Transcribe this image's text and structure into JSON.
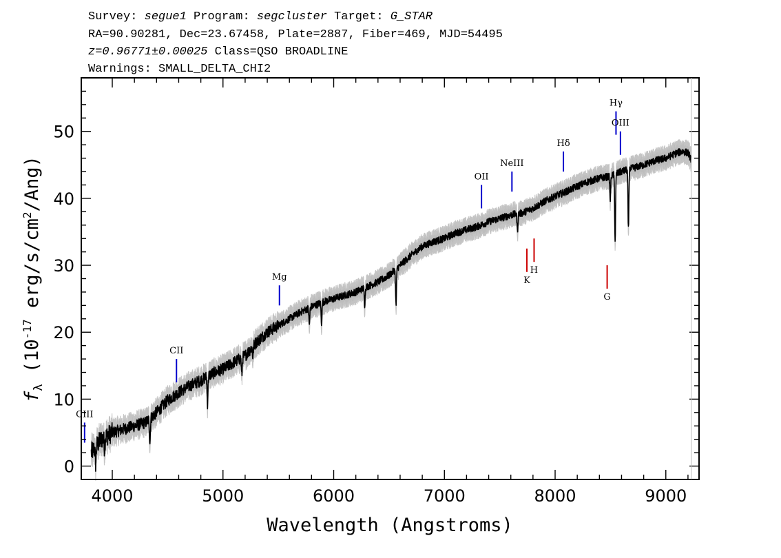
{
  "header": {
    "line1": [
      {
        "t": "Survey: ",
        "em": false
      },
      {
        "t": "segue1",
        "em": true
      },
      {
        "t": " Program: ",
        "em": false
      },
      {
        "t": "segcluster",
        "em": true
      },
      {
        "t": " Target: ",
        "em": false
      },
      {
        "t": "G_STAR",
        "em": true
      }
    ],
    "line2": "RA=90.90281, Dec=23.67458, Plate=2887, Fiber=469, MJD=54495",
    "line3": [
      {
        "t": "z=0.96771±0.00025",
        "em": true
      },
      {
        "t": " Class=QSO BROADLINE",
        "em": false
      }
    ],
    "line4": "Warnings: SMALL_DELTA_CHI2"
  },
  "chart_data": {
    "type": "line",
    "xlabel": "Wavelength (Angstroms)",
    "ylabel": "f_λ (10^-17 erg/s/cm^2/Ang)",
    "ylabel_parts": {
      "f": "f",
      "sub": "λ",
      "a": " (10",
      "sup1": "-17",
      "b": " erg/s/cm",
      "sup2": "2",
      "c": "/Ang)"
    },
    "xlim": [
      3720,
      9300
    ],
    "ylim": [
      -2,
      58
    ],
    "xticks": [
      4000,
      5000,
      6000,
      7000,
      8000,
      9000
    ],
    "xtick_labels": [
      "4000",
      "5000",
      "6000",
      "7000",
      "8000",
      "9000"
    ],
    "yticks": [
      0,
      10,
      20,
      30,
      40,
      50
    ],
    "ytick_labels": [
      "0",
      "10",
      "20",
      "30",
      "40",
      "50"
    ],
    "colors": {
      "flux": "#000000",
      "error_band": "#bdbdbd",
      "emission": "#0000cc",
      "absorption": "#cc0000"
    },
    "continuum": [
      [
        3810,
        2.0
      ],
      [
        3900,
        4.0
      ],
      [
        4000,
        5.0
      ],
      [
        4100,
        5.5
      ],
      [
        4200,
        6.0
      ],
      [
        4300,
        6.5
      ],
      [
        4400,
        8.0
      ],
      [
        4500,
        9.8
      ],
      [
        4600,
        11.0
      ],
      [
        4700,
        12.0
      ],
      [
        4800,
        12.8
      ],
      [
        4900,
        13.8
      ],
      [
        5000,
        14.5
      ],
      [
        5100,
        15.5
      ],
      [
        5200,
        16.5
      ],
      [
        5300,
        18.5
      ],
      [
        5400,
        20.0
      ],
      [
        5500,
        21.0
      ],
      [
        5600,
        22.0
      ],
      [
        5700,
        23.0
      ],
      [
        5800,
        23.8
      ],
      [
        5900,
        24.5
      ],
      [
        6000,
        25.0
      ],
      [
        6100,
        25.5
      ],
      [
        6200,
        26.0
      ],
      [
        6300,
        26.8
      ],
      [
        6400,
        27.5
      ],
      [
        6500,
        28.5
      ],
      [
        6600,
        30.0
      ],
      [
        6700,
        31.5
      ],
      [
        6800,
        32.8
      ],
      [
        6900,
        33.5
      ],
      [
        7000,
        34.0
      ],
      [
        7100,
        34.8
      ],
      [
        7200,
        35.3
      ],
      [
        7300,
        35.8
      ],
      [
        7400,
        36.5
      ],
      [
        7500,
        37.0
      ],
      [
        7600,
        37.5
      ],
      [
        7700,
        37.8
      ],
      [
        7800,
        38.5
      ],
      [
        7900,
        39.5
      ],
      [
        8000,
        40.3
      ],
      [
        8100,
        41.0
      ],
      [
        8200,
        41.8
      ],
      [
        8300,
        42.5
      ],
      [
        8400,
        43.0
      ],
      [
        8500,
        43.3
      ],
      [
        8600,
        44.0
      ],
      [
        8700,
        44.5
      ],
      [
        8800,
        45.0
      ],
      [
        8900,
        45.6
      ],
      [
        9000,
        46.0
      ],
      [
        9100,
        46.8
      ],
      [
        9150,
        47.0
      ],
      [
        9200,
        46.8
      ],
      [
        9230,
        45.8
      ]
    ],
    "absorption_features": [
      [
        3850,
        2.5
      ],
      [
        3930,
        1.5
      ],
      [
        4340,
        3.5
      ],
      [
        4860,
        4.0
      ],
      [
        5170,
        2.5
      ],
      [
        5270,
        1.5
      ],
      [
        5780,
        2.5
      ],
      [
        5890,
        3.0
      ],
      [
        6280,
        2.5
      ],
      [
        6563,
        5.5
      ],
      [
        7660,
        2.5
      ],
      [
        8498,
        3.5
      ],
      [
        8542,
        10.0
      ],
      [
        8662,
        9.0
      ]
    ],
    "line_markers": [
      {
        "label": "CIII",
        "x": 3750,
        "y0": 3.5,
        "y1": 6.5,
        "kind": "emission"
      },
      {
        "label": "CII",
        "x": 4580,
        "y0": 12.5,
        "y1": 16.0,
        "kind": "emission"
      },
      {
        "label": "Mg",
        "x": 5510,
        "y0": 24.0,
        "y1": 27.0,
        "kind": "emission"
      },
      {
        "label": "OII",
        "x": 7335,
        "y0": 38.5,
        "y1": 42.0,
        "kind": "emission"
      },
      {
        "label": "NeIII",
        "x": 7610,
        "y0": 41.0,
        "y1": 44.0,
        "kind": "emission"
      },
      {
        "label": "Hδ",
        "x": 8075,
        "y0": 44.0,
        "y1": 47.0,
        "kind": "emission"
      },
      {
        "label": "Hγ",
        "x": 8550,
        "y0": 49.5,
        "y1": 53.0,
        "kind": "emission"
      },
      {
        "label": "OIII",
        "x": 8590,
        "y0": 46.5,
        "y1": 50.0,
        "kind": "emission"
      },
      {
        "label": "K",
        "x": 7745,
        "y0": 29.0,
        "y1": 32.5,
        "kind": "absorption"
      },
      {
        "label": "H",
        "x": 7810,
        "y0": 30.5,
        "y1": 34.0,
        "kind": "absorption"
      },
      {
        "label": "G",
        "x": 8470,
        "y0": 26.5,
        "y1": 30.0,
        "kind": "absorption"
      }
    ]
  }
}
